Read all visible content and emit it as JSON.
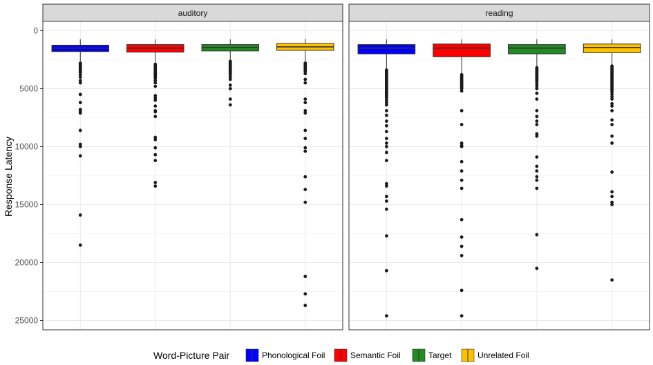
{
  "chart_data": {
    "type": "boxplot",
    "ylabel": "Response Latency",
    "y_reversed": true,
    "ylim": [
      -800,
      25800
    ],
    "y_ticks": [
      0,
      5000,
      10000,
      15000,
      20000,
      25000
    ],
    "grid": true,
    "legend": {
      "title": "Word-Picture Pair",
      "position": "bottom",
      "items": [
        {
          "label": "Phonological Foil",
          "color": "#0000ff"
        },
        {
          "label": "Semantic Foil",
          "color": "#ff0000"
        },
        {
          "label": "Target",
          "color": "#228b22"
        },
        {
          "label": "Unrelated Foil",
          "color": "#ffc000"
        }
      ]
    },
    "panels": [
      {
        "label": "auditory",
        "boxes": [
          {
            "group": "Phonological Foil",
            "whisker_low": 750,
            "q1": 1250,
            "median": 1500,
            "q3": 1800,
            "whisker_high": 2650,
            "outliers": [
              2800,
              2900,
              3000,
              3100,
              3200,
              3300,
              3400,
              3500,
              3600,
              3800,
              4000,
              4300,
              4500,
              5500,
              6200,
              6800,
              6900,
              7000,
              7100,
              8600,
              9800,
              10000,
              10800,
              15900,
              18500
            ]
          },
          {
            "group": "Semantic Foil",
            "whisker_low": 750,
            "q1": 1200,
            "median": 1500,
            "q3": 1850,
            "whisker_high": 2750,
            "outliers": [
              2900,
              3000,
              3100,
              3200,
              3300,
              3400,
              3500,
              3600,
              3700,
              3800,
              3900,
              4000,
              4100,
              4300,
              4500,
              4800,
              5600,
              5800,
              6000,
              6500,
              6900,
              7000,
              7400,
              9200,
              9400,
              10100,
              10700,
              11200,
              13100,
              13400
            ]
          },
          {
            "group": "Target",
            "whisker_low": 750,
            "q1": 1200,
            "median": 1450,
            "q3": 1750,
            "whisker_high": 2550,
            "outliers": [
              2650,
              2750,
              2850,
              2950,
              3050,
              3150,
              3250,
              3350,
              3450,
              3550,
              3650,
              3800,
              4000,
              4200,
              4700,
              5000,
              5900,
              6400
            ]
          },
          {
            "group": "Unrelated Foil",
            "whisker_low": 700,
            "q1": 1100,
            "median": 1400,
            "q3": 1700,
            "whisker_high": 2650,
            "outliers": [
              2800,
              2900,
              3000,
              3100,
              3200,
              3300,
              3400,
              3500,
              3700,
              4200,
              4500,
              5900,
              6200,
              6900,
              7100,
              8600,
              9300,
              10100,
              10400,
              12600,
              13700,
              14800,
              21200,
              22700,
              23700
            ]
          }
        ]
      },
      {
        "label": "reading",
        "boxes": [
          {
            "group": "Phonological Foil",
            "whisker_low": 750,
            "q1": 1200,
            "median": 1500,
            "q3": 2000,
            "whisker_high": 3300,
            "outliers": [
              3400,
              3500,
              3600,
              3700,
              3800,
              3900,
              4000,
              4100,
              4200,
              4300,
              4400,
              4500,
              4600,
              4700,
              4800,
              4900,
              5000,
              5100,
              5200,
              5300,
              5400,
              5500,
              5600,
              5700,
              5800,
              6000,
              6200,
              6400,
              6900,
              7300,
              7800,
              8200,
              8700,
              9300,
              9700,
              10000,
              10500,
              11200,
              13200,
              13400,
              14300,
              14700,
              15400,
              17700,
              20700,
              24600
            ]
          },
          {
            "group": "Semantic Foil",
            "whisker_low": 750,
            "q1": 1150,
            "median": 1500,
            "q3": 2250,
            "whisker_high": 3700,
            "outliers": [
              3800,
              3900,
              4000,
              4100,
              4200,
              4300,
              4400,
              4500,
              4600,
              4700,
              4800,
              4900,
              5000,
              5200,
              6900,
              8100,
              9700,
              9900,
              10000,
              11300,
              12100,
              12900,
              13600,
              16300,
              17800,
              18600,
              19400,
              22400,
              24600
            ]
          },
          {
            "group": "Target",
            "whisker_low": 750,
            "q1": 1200,
            "median": 1500,
            "q3": 2000,
            "whisker_high": 3100,
            "outliers": [
              3200,
              3300,
              3400,
              3500,
              3600,
              3700,
              3800,
              3900,
              4000,
              4100,
              4200,
              4300,
              4400,
              4600,
              4800,
              5000,
              5400,
              5900,
              6900,
              7400,
              7800,
              8100,
              8900,
              9100,
              10900,
              11700,
              12100,
              12600,
              12900,
              13600,
              17600,
              20500
            ]
          },
          {
            "group": "Unrelated Foil",
            "whisker_low": 750,
            "q1": 1150,
            "median": 1450,
            "q3": 1900,
            "whisker_high": 2950,
            "outliers": [
              3050,
              3150,
              3250,
              3350,
              3450,
              3550,
              3650,
              3750,
              3850,
              3950,
              4050,
              4150,
              4250,
              4350,
              4450,
              4550,
              4650,
              4750,
              4850,
              4950,
              5050,
              5150,
              5300,
              5500,
              5700,
              5900,
              6300,
              6500,
              6900,
              7700,
              8100,
              9100,
              9700,
              12200,
              13900,
              14300,
              14800,
              15000,
              21500
            ]
          }
        ]
      }
    ]
  }
}
